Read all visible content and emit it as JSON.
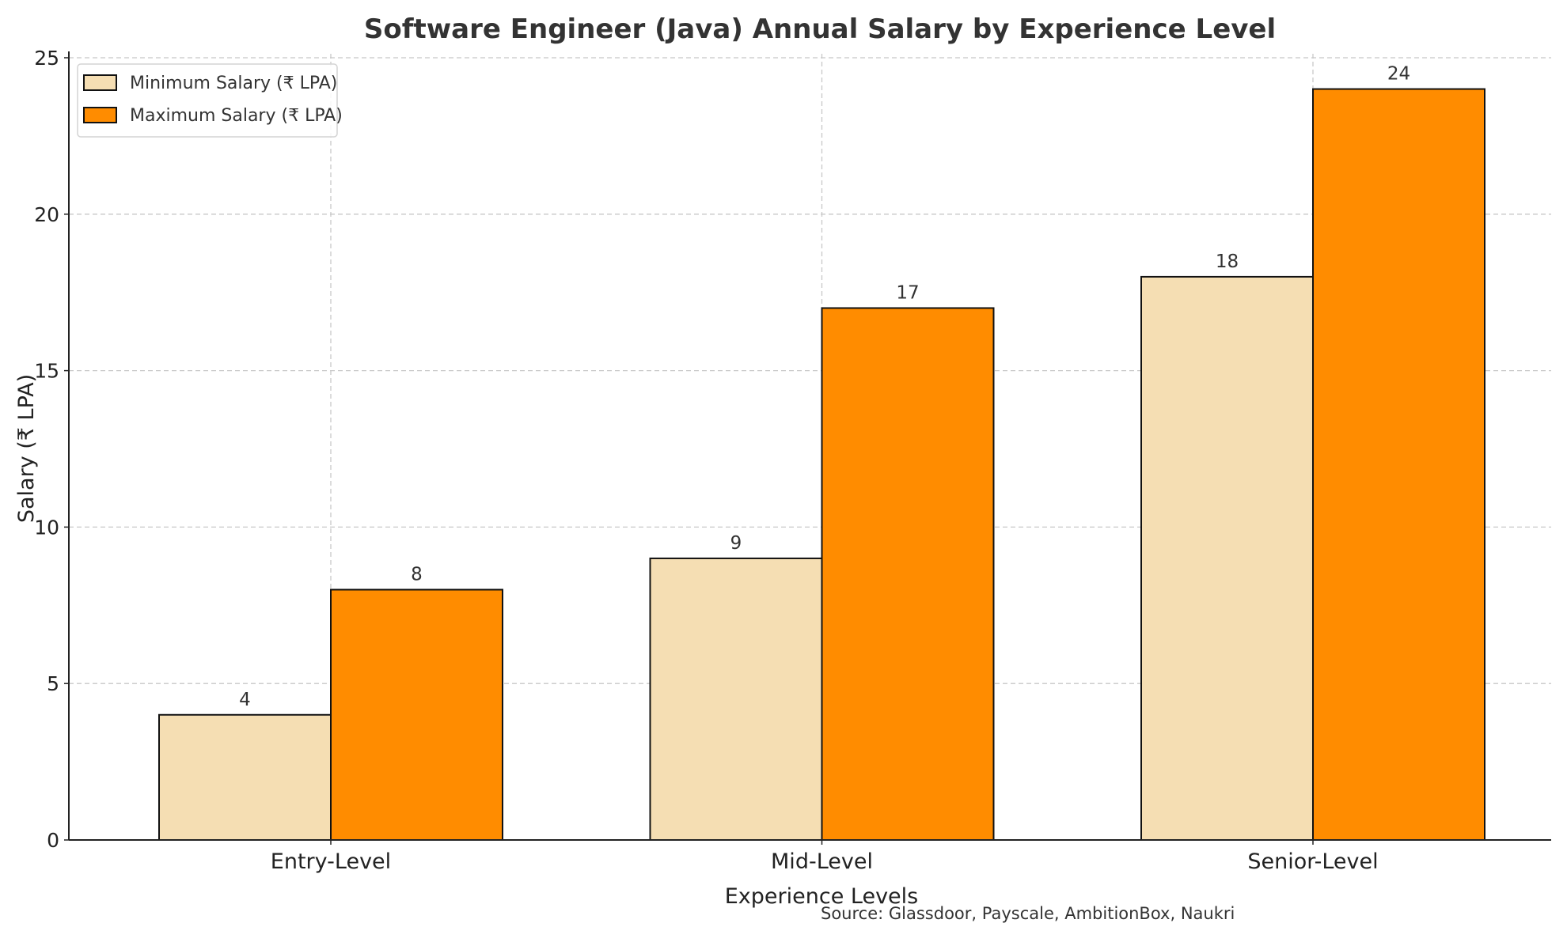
{
  "chart_data": {
    "type": "bar",
    "title": "Software Engineer (Java) Annual Salary by Experience Level",
    "xlabel": "Experience Levels",
    "ylabel": "Salary (₹ LPA)",
    "categories": [
      "Entry-Level",
      "Mid-Level",
      "Senior-Level"
    ],
    "series": [
      {
        "name": "Minimum Salary (₹ LPA)",
        "values": [
          4,
          9,
          18
        ],
        "color": "#F5DEB3"
      },
      {
        "name": "Maximum Salary (₹ LPA)",
        "values": [
          8,
          17,
          24
        ],
        "color": "#FF8C00"
      }
    ],
    "ylim": [
      0,
      25
    ],
    "yticks": [
      0,
      5,
      10,
      15,
      20,
      25
    ],
    "grid": true,
    "legend": "top-left",
    "annotation": "Source: Glassdoor, Payscale, AmbitionBox, Naukri"
  }
}
